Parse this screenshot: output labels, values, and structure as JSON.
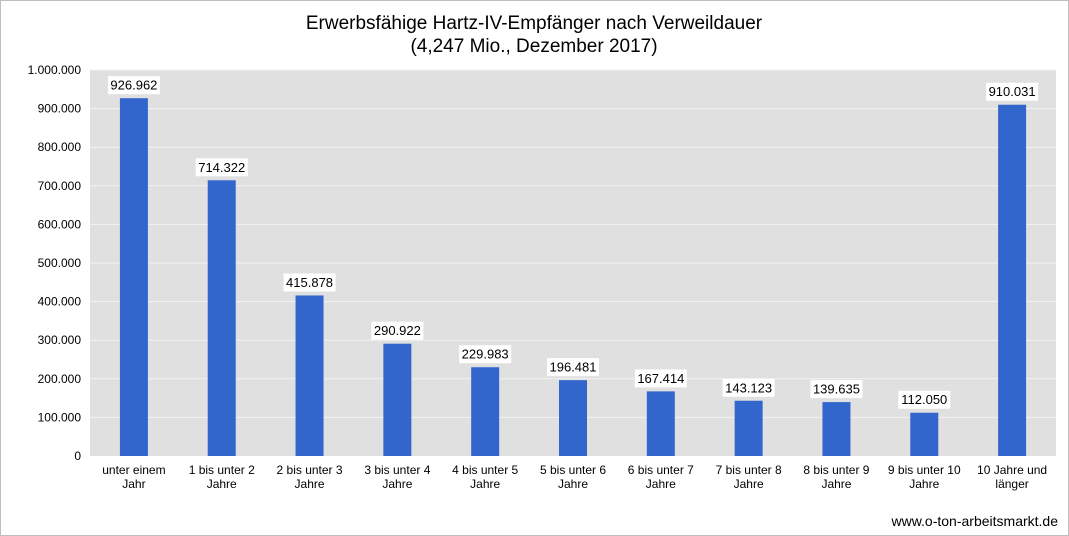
{
  "source_note": "www.o-ton-arbeitsmarkt.de",
  "chart_data": {
    "type": "bar",
    "title": "Erwerbsfähige Hartz-IV-Empfänger nach Verweildauer",
    "subtitle": "(4,247 Mio., Dezember 2017)",
    "categories": [
      [
        "unter einem",
        "Jahr"
      ],
      [
        "1 bis unter 2",
        "Jahre"
      ],
      [
        "2 bis unter 3",
        "Jahre"
      ],
      [
        "3 bis unter 4",
        "Jahre"
      ],
      [
        "4 bis unter 5",
        "Jahre"
      ],
      [
        "5 bis unter 6",
        "Jahre"
      ],
      [
        "6 bis unter 7",
        "Jahre"
      ],
      [
        "7 bis unter 8",
        "Jahre"
      ],
      [
        "8 bis unter 9",
        "Jahre"
      ],
      [
        "9 bis unter 10",
        "Jahre"
      ],
      [
        "10 Jahre und",
        "länger"
      ]
    ],
    "values": [
      926962,
      714322,
      415878,
      290922,
      229983,
      196481,
      167414,
      143123,
      139635,
      112050,
      910031
    ],
    "value_labels": [
      "926.962",
      "714.322",
      "415.878",
      "290.922",
      "229.983",
      "196.481",
      "167.414",
      "143.123",
      "139.635",
      "112.050",
      "910.031"
    ],
    "ylim": [
      0,
      1000000
    ],
    "yticks": [
      0,
      100000,
      200000,
      300000,
      400000,
      500000,
      600000,
      700000,
      800000,
      900000,
      1000000
    ],
    "ytick_labels": [
      "0",
      "100.000",
      "200.000",
      "300.000",
      "400.000",
      "500.000",
      "600.000",
      "700.000",
      "800.000",
      "900.000",
      "1.000.000"
    ],
    "grid": true,
    "colors": {
      "bar": "#3366cc",
      "plot_background": "#e0e0e0",
      "gridline": "#f2f2f2"
    }
  }
}
